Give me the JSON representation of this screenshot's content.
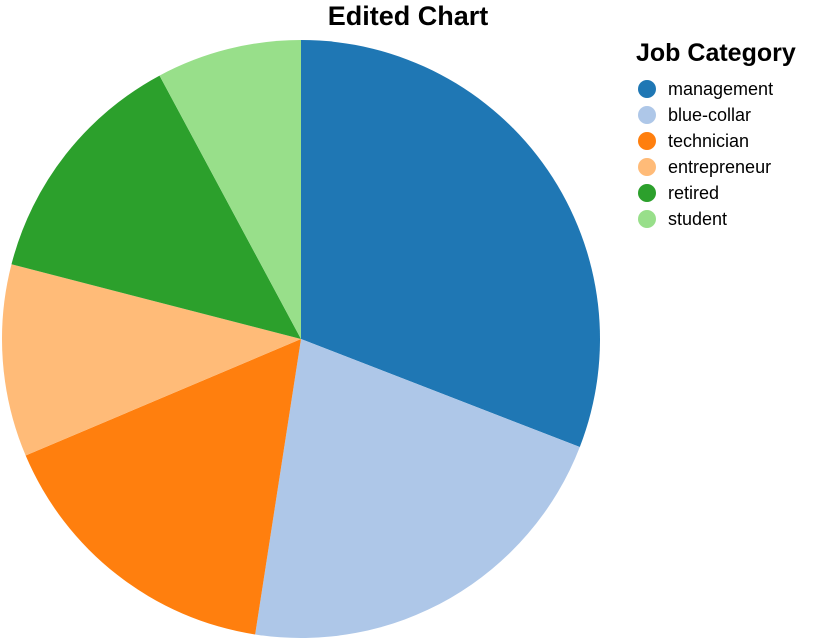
{
  "chart_data": {
    "type": "pie",
    "title": "Edited Chart",
    "legend": {
      "title": "Job Category",
      "placement": "right"
    },
    "categories": [
      "management",
      "blue-collar",
      "technician",
      "entrepreneur",
      "retired",
      "student"
    ],
    "values": [
      31.5,
      22.0,
      16.5,
      10.6,
      13.4,
      8.0
    ],
    "colors": [
      "#1f77b4",
      "#aec7e8",
      "#ff7f0e",
      "#ffbb78",
      "#2ca02c",
      "#98df8a"
    ]
  }
}
